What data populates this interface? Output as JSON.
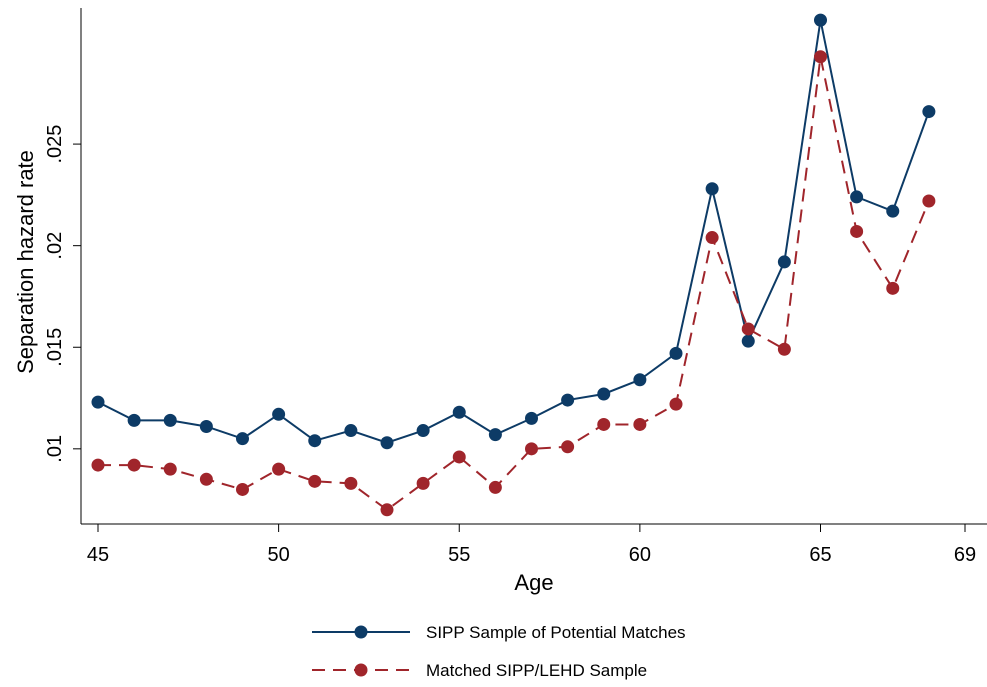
{
  "chart_data": {
    "type": "line",
    "title": "",
    "xlabel": "Age",
    "ylabel": "Separation hazard rate",
    "xlim": [
      45,
      69
    ],
    "ylim": [
      0.0063,
      0.0316
    ],
    "x_ticks": [
      45,
      50,
      55,
      60,
      65,
      69
    ],
    "x_tick_labels": [
      "45",
      "50",
      "55",
      "60",
      "65",
      "69"
    ],
    "y_ticks": [
      0.01,
      0.015,
      0.02,
      0.025
    ],
    "y_tick_labels": [
      ".01",
      ".015",
      ".02",
      ".025"
    ],
    "grid": false,
    "legend_position": "bottom",
    "x": [
      45,
      46,
      47,
      48,
      49,
      50,
      51,
      52,
      53,
      54,
      55,
      56,
      57,
      58,
      59,
      60,
      61,
      62,
      63,
      64,
      65,
      66,
      67,
      68
    ],
    "series": [
      {
        "name": "SIPP Sample of Potential Matches",
        "color": "#0d3b66",
        "line_style": "solid",
        "values": [
          0.0123,
          0.0114,
          0.0114,
          0.0111,
          0.0105,
          0.0117,
          0.0104,
          0.0109,
          0.0103,
          0.0109,
          0.0118,
          0.0107,
          0.0115,
          0.0124,
          0.0127,
          0.0134,
          0.0147,
          0.0228,
          0.0153,
          0.0192,
          0.0311,
          0.0224,
          0.0217,
          0.0266
        ]
      },
      {
        "name": "Matched SIPP/LEHD Sample",
        "color": "#a0252b",
        "line_style": "dashed",
        "values": [
          0.0092,
          0.0092,
          0.009,
          0.0085,
          0.008,
          0.009,
          0.0084,
          0.0083,
          0.007,
          0.0083,
          0.0096,
          0.0081,
          0.01,
          0.0101,
          0.0112,
          0.0112,
          0.0122,
          0.0204,
          0.0159,
          0.0149,
          0.0293,
          0.0207,
          0.0179,
          0.0222
        ]
      }
    ]
  }
}
